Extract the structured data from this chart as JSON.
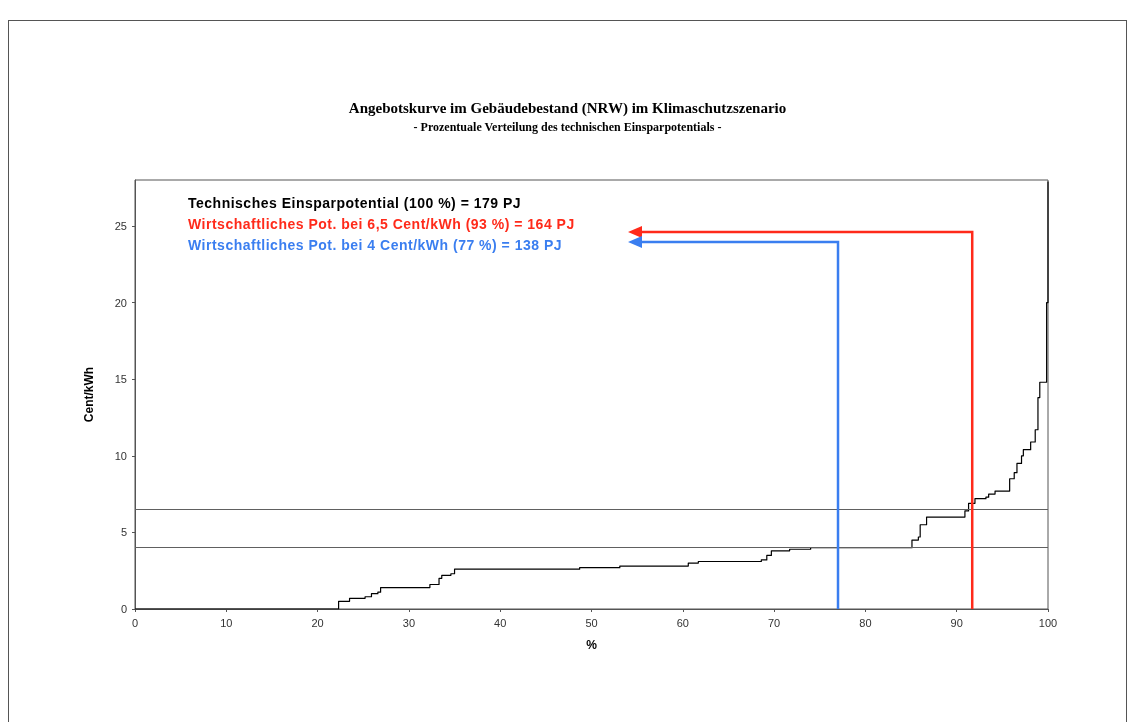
{
  "chart_data": {
    "type": "step",
    "title": "Angebotskurve im Gebäudebestand (NRW) im Klimaschutzszenario",
    "subtitle": "- Prozentuale Verteilung des technischen Einsparpotentials -",
    "xlabel": "%",
    "ylabel": "Cent/kWh",
    "x": [
      0,
      22.3,
      23.5,
      25.2,
      25.9,
      26.6,
      26.9,
      32.3,
      33.3,
      33.6,
      34.6,
      35.0,
      48.7,
      53.1,
      60.6,
      61.7,
      68.6,
      69.2,
      69.7,
      70.3,
      71.7,
      74.0,
      85.1,
      85.8,
      86.0,
      86.7,
      90.9,
      91.3,
      92.0,
      93.2,
      93.5,
      94.2,
      94.6,
      95.8,
      96.3,
      96.6,
      97.1,
      97.3,
      98.1,
      98.6,
      98.9,
      99.1,
      99.85,
      100
    ],
    "values": [
      0,
      0.5,
      0.7,
      0.8,
      1.0,
      1.1,
      1.4,
      1.6,
      2.0,
      2.2,
      2.3,
      2.6,
      2.7,
      2.8,
      3.0,
      3.1,
      3.2,
      3.5,
      3.8,
      3.8,
      3.9,
      4.0,
      4.5,
      4.7,
      5.5,
      6.0,
      6.4,
      6.9,
      7.2,
      7.3,
      7.5,
      7.7,
      7.7,
      8.5,
      8.9,
      9.5,
      10.0,
      10.4,
      10.9,
      11.7,
      13.8,
      14.8,
      20.0,
      27.9
    ],
    "color": "#000000",
    "xlim": [
      0,
      100
    ],
    "xticks": [
      0,
      10,
      20,
      30,
      40,
      50,
      60,
      70,
      80,
      90,
      100
    ],
    "ylim": [
      0,
      28
    ],
    "yticks": [
      0,
      5,
      10,
      15,
      20,
      25
    ],
    "grid": false,
    "marker": "none",
    "line_style": "solid",
    "ref_lines": [
      {
        "axis": "y",
        "value": 6.5,
        "color": "#606060"
      },
      {
        "axis": "y",
        "value": 4,
        "color": "#606060"
      },
      {
        "axis": "x",
        "value": 91.7,
        "color": "#ff2a1a"
      },
      {
        "axis": "x",
        "value": 77,
        "color": "#3a7ef0"
      }
    ],
    "annotations": [
      "Technisches Einsparpotential (100 %) = 179 PJ",
      "Wirtschaftliches Pot. bei 6,5 Cent/kWh (93 %) = 164 PJ",
      "Wirtschaftliches Pot. bei 4 Cent/kWh (77 %) = 138 PJ"
    ]
  }
}
